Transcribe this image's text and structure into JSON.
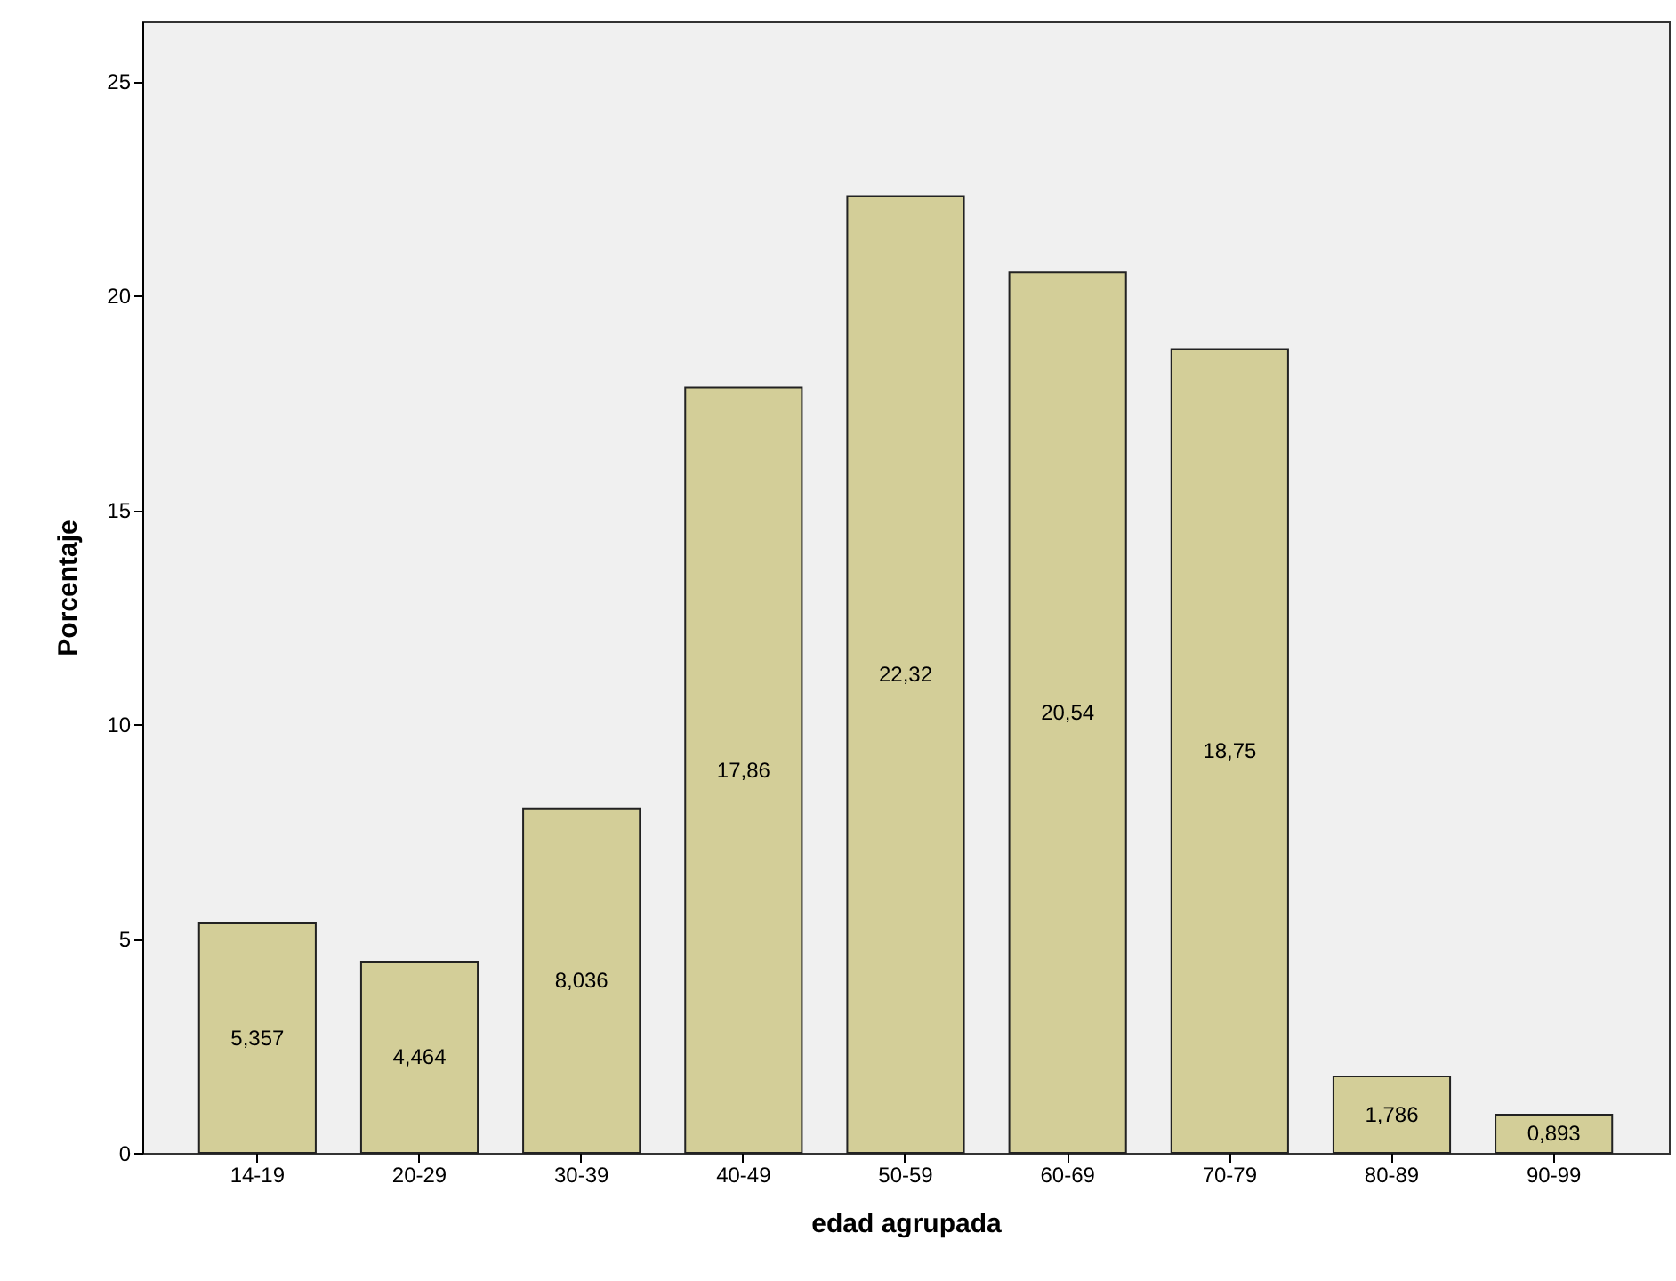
{
  "chart_data": {
    "type": "bar",
    "xlabel": "edad agrupada",
    "ylabel": "Porcentaje",
    "categories": [
      "14-19",
      "20-29",
      "30-39",
      "40-49",
      "50-59",
      "60-69",
      "70-79",
      "80-89",
      "90-99"
    ],
    "values": [
      5.357,
      4.464,
      8.036,
      17.86,
      22.32,
      20.54,
      18.75,
      1.786,
      0.893
    ],
    "value_labels": [
      "5,357",
      "4,464",
      "8,036",
      "17,86",
      "22,32",
      "20,54",
      "18,75",
      "1,786",
      "0,893"
    ],
    "color": "#d3ce98",
    "ylim": [
      0,
      26.4
    ],
    "yticks": [
      0,
      5,
      10,
      15,
      20,
      25
    ],
    "grid": false
  }
}
